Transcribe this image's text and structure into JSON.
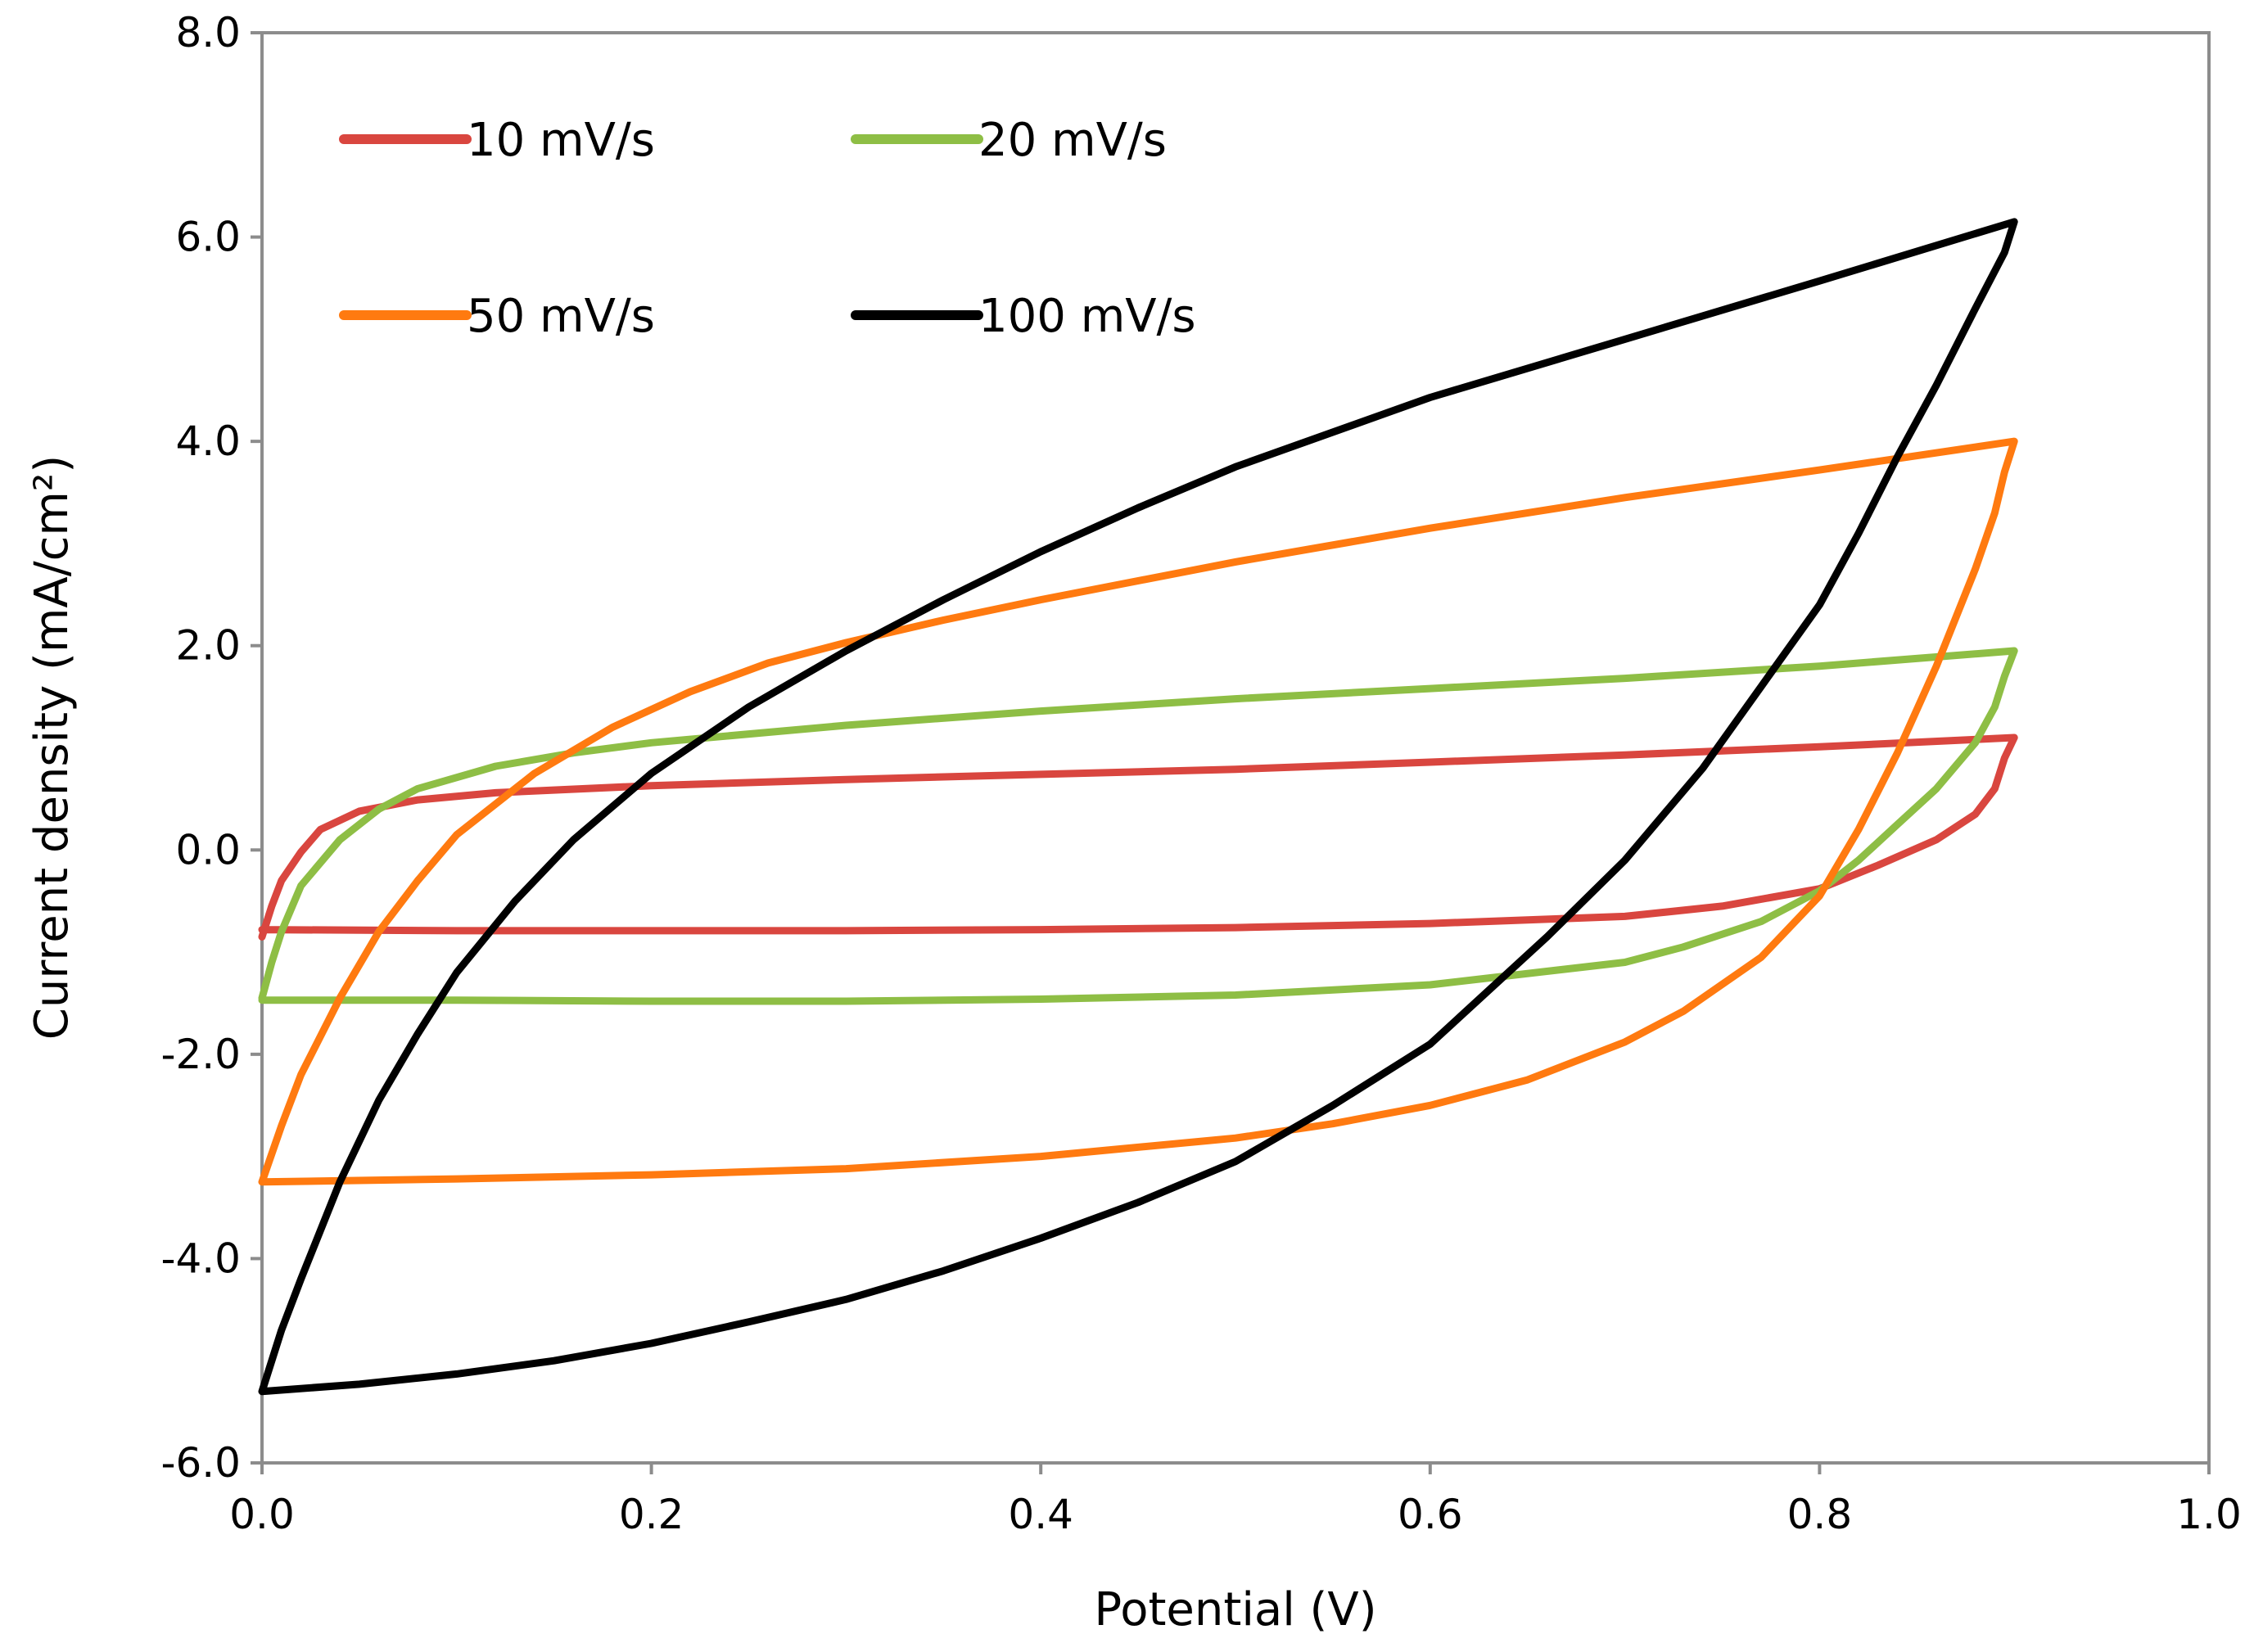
{
  "chart_data": {
    "type": "line",
    "title": "",
    "xlabel": "Potential (V)",
    "ylabel": "Current density (mA/cm²)",
    "xlim": [
      0.0,
      1.0
    ],
    "ylim": [
      -6.0,
      8.0
    ],
    "xticks": [
      "0.0",
      "0.2",
      "0.4",
      "0.6",
      "0.8",
      "1.0"
    ],
    "yticks": [
      "8.0",
      "6.0",
      "4.0",
      "2.0",
      "0.0",
      "-2.0",
      "-4.0",
      "-6.0"
    ],
    "grid": false,
    "legend_position": "top-left",
    "series": [
      {
        "name": "10 mV/s",
        "color": "#d9463f",
        "anodic": [
          [
            0.0,
            -0.85
          ],
          [
            0.005,
            -0.55
          ],
          [
            0.01,
            -0.3
          ],
          [
            0.02,
            -0.02
          ],
          [
            0.03,
            0.2
          ],
          [
            0.05,
            0.38
          ],
          [
            0.08,
            0.49
          ],
          [
            0.12,
            0.56
          ],
          [
            0.2,
            0.63
          ],
          [
            0.3,
            0.69
          ],
          [
            0.4,
            0.74
          ],
          [
            0.5,
            0.79
          ],
          [
            0.6,
            0.86
          ],
          [
            0.7,
            0.93
          ],
          [
            0.8,
            1.01
          ],
          [
            0.9,
            1.1
          ]
        ],
        "cathodic": [
          [
            0.9,
            1.1
          ],
          [
            0.895,
            0.9
          ],
          [
            0.89,
            0.6
          ],
          [
            0.88,
            0.35
          ],
          [
            0.86,
            0.1
          ],
          [
            0.83,
            -0.15
          ],
          [
            0.8,
            -0.38
          ],
          [
            0.75,
            -0.55
          ],
          [
            0.7,
            -0.65
          ],
          [
            0.6,
            -0.72
          ],
          [
            0.5,
            -0.76
          ],
          [
            0.4,
            -0.78
          ],
          [
            0.3,
            -0.79
          ],
          [
            0.2,
            -0.79
          ],
          [
            0.1,
            -0.79
          ],
          [
            0.0,
            -0.78
          ]
        ]
      },
      {
        "name": "20 mV/s",
        "color": "#8ebe45",
        "anodic": [
          [
            0.0,
            -1.45
          ],
          [
            0.005,
            -1.1
          ],
          [
            0.01,
            -0.8
          ],
          [
            0.02,
            -0.35
          ],
          [
            0.04,
            0.1
          ],
          [
            0.06,
            0.4
          ],
          [
            0.08,
            0.6
          ],
          [
            0.12,
            0.82
          ],
          [
            0.16,
            0.95
          ],
          [
            0.2,
            1.05
          ],
          [
            0.3,
            1.22
          ],
          [
            0.4,
            1.36
          ],
          [
            0.5,
            1.48
          ],
          [
            0.6,
            1.58
          ],
          [
            0.7,
            1.68
          ],
          [
            0.8,
            1.8
          ],
          [
            0.9,
            1.95
          ]
        ],
        "cathodic": [
          [
            0.9,
            1.95
          ],
          [
            0.895,
            1.7
          ],
          [
            0.89,
            1.4
          ],
          [
            0.88,
            1.05
          ],
          [
            0.86,
            0.6
          ],
          [
            0.84,
            0.25
          ],
          [
            0.82,
            -0.1
          ],
          [
            0.8,
            -0.4
          ],
          [
            0.77,
            -0.7
          ],
          [
            0.73,
            -0.95
          ],
          [
            0.7,
            -1.1
          ],
          [
            0.6,
            -1.32
          ],
          [
            0.5,
            -1.42
          ],
          [
            0.4,
            -1.46
          ],
          [
            0.3,
            -1.48
          ],
          [
            0.2,
            -1.48
          ],
          [
            0.1,
            -1.47
          ],
          [
            0.0,
            -1.47
          ]
        ]
      },
      {
        "name": "50 mV/s",
        "color": "#ff7a10",
        "anodic": [
          [
            0.0,
            -3.25
          ],
          [
            0.01,
            -2.7
          ],
          [
            0.02,
            -2.2
          ],
          [
            0.04,
            -1.45
          ],
          [
            0.06,
            -0.8
          ],
          [
            0.08,
            -0.3
          ],
          [
            0.1,
            0.15
          ],
          [
            0.14,
            0.75
          ],
          [
            0.18,
            1.2
          ],
          [
            0.22,
            1.55
          ],
          [
            0.26,
            1.83
          ],
          [
            0.3,
            2.03
          ],
          [
            0.35,
            2.25
          ],
          [
            0.4,
            2.45
          ],
          [
            0.5,
            2.82
          ],
          [
            0.6,
            3.15
          ],
          [
            0.7,
            3.45
          ],
          [
            0.8,
            3.72
          ],
          [
            0.9,
            4.0
          ]
        ],
        "cathodic": [
          [
            0.9,
            4.0
          ],
          [
            0.895,
            3.7
          ],
          [
            0.89,
            3.3
          ],
          [
            0.88,
            2.75
          ],
          [
            0.86,
            1.8
          ],
          [
            0.84,
            0.95
          ],
          [
            0.82,
            0.2
          ],
          [
            0.8,
            -0.45
          ],
          [
            0.77,
            -1.05
          ],
          [
            0.73,
            -1.58
          ],
          [
            0.7,
            -1.88
          ],
          [
            0.65,
            -2.25
          ],
          [
            0.6,
            -2.5
          ],
          [
            0.55,
            -2.68
          ],
          [
            0.5,
            -2.82
          ],
          [
            0.4,
            -3.0
          ],
          [
            0.3,
            -3.12
          ],
          [
            0.2,
            -3.18
          ],
          [
            0.1,
            -3.22
          ],
          [
            0.0,
            -3.25
          ]
        ]
      },
      {
        "name": "100 mV/s",
        "color": "#000000",
        "anodic": [
          [
            0.0,
            -5.3
          ],
          [
            0.01,
            -4.7
          ],
          [
            0.02,
            -4.2
          ],
          [
            0.04,
            -3.25
          ],
          [
            0.06,
            -2.45
          ],
          [
            0.08,
            -1.8
          ],
          [
            0.1,
            -1.2
          ],
          [
            0.13,
            -0.5
          ],
          [
            0.16,
            0.1
          ],
          [
            0.2,
            0.75
          ],
          [
            0.25,
            1.4
          ],
          [
            0.3,
            1.95
          ],
          [
            0.35,
            2.45
          ],
          [
            0.4,
            2.92
          ],
          [
            0.45,
            3.35
          ],
          [
            0.5,
            3.75
          ],
          [
            0.6,
            4.43
          ],
          [
            0.7,
            5.0
          ],
          [
            0.8,
            5.57
          ],
          [
            0.9,
            6.15
          ]
        ],
        "cathodic": [
          [
            0.9,
            6.15
          ],
          [
            0.895,
            5.85
          ],
          [
            0.88,
            5.3
          ],
          [
            0.86,
            4.55
          ],
          [
            0.84,
            3.85
          ],
          [
            0.82,
            3.1
          ],
          [
            0.8,
            2.4
          ],
          [
            0.77,
            1.6
          ],
          [
            0.74,
            0.8
          ],
          [
            0.7,
            -0.1
          ],
          [
            0.66,
            -0.85
          ],
          [
            0.6,
            -1.9
          ],
          [
            0.55,
            -2.5
          ],
          [
            0.5,
            -3.05
          ],
          [
            0.45,
            -3.45
          ],
          [
            0.4,
            -3.8
          ],
          [
            0.35,
            -4.12
          ],
          [
            0.3,
            -4.4
          ],
          [
            0.25,
            -4.62
          ],
          [
            0.2,
            -4.83
          ],
          [
            0.15,
            -5.0
          ],
          [
            0.1,
            -5.13
          ],
          [
            0.05,
            -5.23
          ],
          [
            0.0,
            -5.3
          ]
        ]
      }
    ]
  }
}
